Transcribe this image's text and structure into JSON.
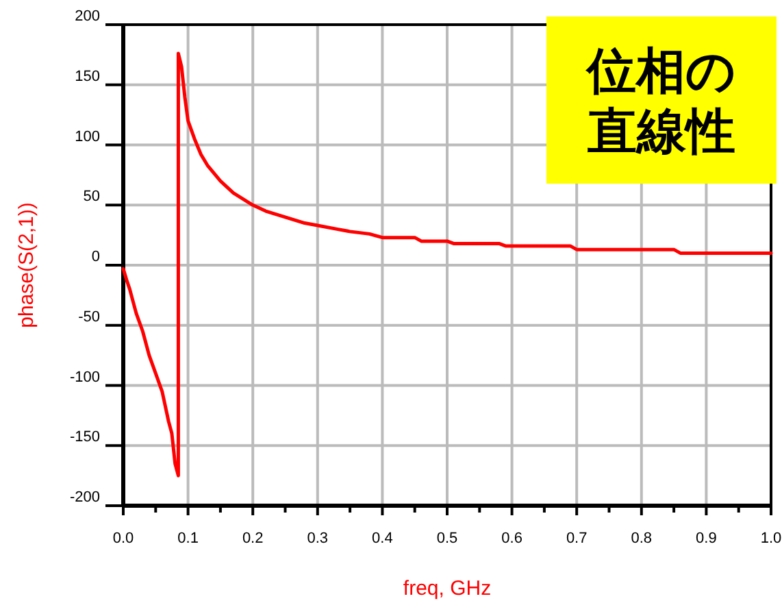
{
  "chart_data": {
    "type": "line",
    "xlabel": "freq, GHz",
    "ylabel": "phase(S(2,1))",
    "annotations": [
      "位相の直線性"
    ],
    "x": [
      0,
      0.005,
      0.01,
      0.02,
      0.03,
      0.04,
      0.05,
      0.06,
      0.07,
      0.075,
      0.08,
      0.085,
      0.085,
      0.09,
      0.095,
      0.1,
      0.11,
      0.12,
      0.13,
      0.15,
      0.17,
      0.2,
      0.22,
      0.25,
      0.28,
      0.3,
      0.33,
      0.35,
      0.38,
      0.4,
      0.45,
      0.46,
      0.5,
      0.51,
      0.58,
      0.59,
      0.69,
      0.7,
      0.85,
      0.86,
      1.0
    ],
    "series": [
      {
        "color": "#ff0000",
        "values": [
          -3,
          -12,
          -20,
          -40,
          -55,
          -75,
          -90,
          -105,
          -130,
          -140,
          -165,
          -175,
          176,
          165,
          140,
          120,
          105,
          92,
          83,
          70,
          60,
          50,
          45,
          40,
          35,
          33,
          30,
          28,
          26,
          23,
          23,
          20,
          20,
          18,
          18,
          16,
          16,
          13,
          13,
          10,
          10
        ]
      }
    ],
    "xlim": [
      0,
      1
    ],
    "ylim": [
      -200,
      200
    ],
    "xticks": [
      {
        "value": 0,
        "label": "0.0"
      },
      0.1,
      0.2,
      0.3,
      0.4,
      0.5,
      0.6,
      0.7,
      0.8,
      0.9,
      {
        "value": 1,
        "label": "1.0"
      }
    ],
    "yticks": [
      -200,
      -150,
      -100,
      -50,
      0,
      50,
      100,
      150,
      200
    ],
    "grid": true
  }
}
